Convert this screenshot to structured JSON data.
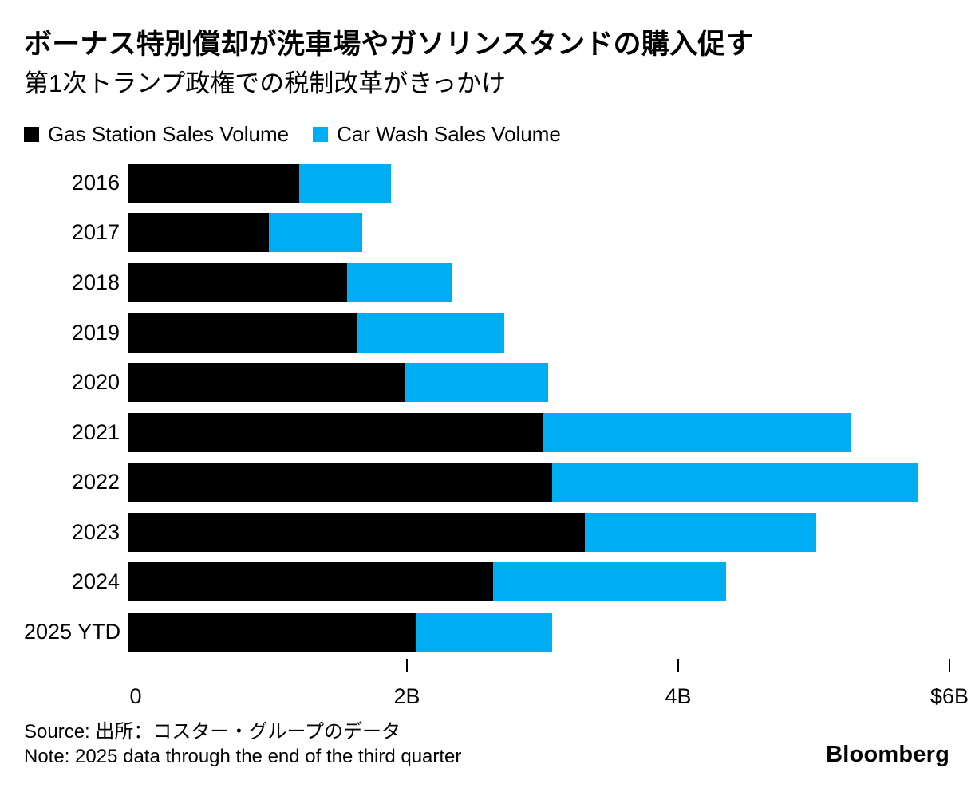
{
  "header": {
    "title": "ボーナス特別償却が洗車場やガソリンスタンドの購入促す",
    "subtitle": "第1次トランプ政権での税制改革がきっかけ"
  },
  "colors": {
    "gas_station": "#000000",
    "car_wash": "#00ACF2",
    "background": "#ffffff",
    "text": "#000000"
  },
  "legend": [
    {
      "label": "Gas Station Sales Volume",
      "color": "#000000"
    },
    {
      "label": "Car Wash Sales Volume",
      "color": "#00ACF2"
    }
  ],
  "chart_data": {
    "type": "bar",
    "orientation": "horizontal",
    "stacked": true,
    "unit": "USD billions",
    "categories": [
      "2016",
      "2017",
      "2018",
      "2019",
      "2020",
      "2021",
      "2022",
      "2023",
      "2024",
      "2025 YTD"
    ],
    "series": [
      {
        "name": "Gas Station Sales Volume",
        "color": "#000000",
        "values": [
          1.25,
          1.03,
          1.6,
          1.68,
          2.03,
          3.03,
          3.1,
          3.34,
          2.67,
          2.11
        ]
      },
      {
        "name": "Car Wash Sales Volume",
        "color": "#00ACF2",
        "values": [
          0.67,
          0.68,
          0.77,
          1.07,
          1.04,
          2.25,
          2.67,
          1.69,
          1.7,
          0.99
        ]
      }
    ],
    "totals": [
      1.92,
      1.71,
      2.37,
      2.75,
      3.07,
      5.28,
      5.77,
      5.03,
      4.37,
      3.1
    ],
    "xlim": [
      0,
      6
    ],
    "x_ticks": [
      {
        "value": 0,
        "label": "0",
        "mark": false
      },
      {
        "value": 2,
        "label": "2B",
        "mark": true
      },
      {
        "value": 4,
        "label": "4B",
        "mark": true
      },
      {
        "value": 6,
        "label": "$6B",
        "mark": true
      }
    ],
    "grid": false,
    "legend_position": "top"
  },
  "footer": {
    "source": "Source: 出所：コスター・グループのデータ",
    "note": "Note: 2025 data through the end of the third quarter",
    "brand": "Bloomberg"
  }
}
